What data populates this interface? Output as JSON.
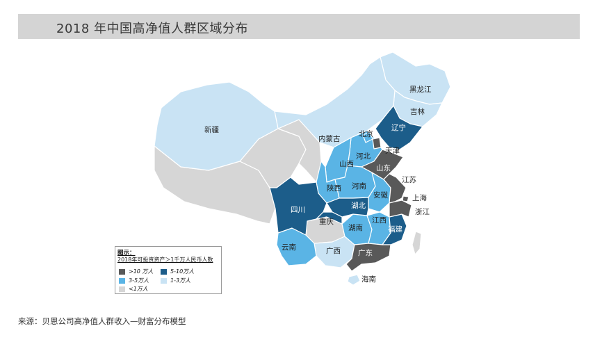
{
  "title": "2018 年中国高净值人群区域分布",
  "source": "来源：贝恩公司高净值人群收入—财富分布模型",
  "colors": {
    "gt10": "#595959",
    "r5_10": "#1c5d8a",
    "r3_5": "#5ab4e5",
    "r1_3": "#c9e3f4",
    "lt1": "#d6d6d6",
    "border": "#ffffff"
  },
  "legend": {
    "title": "图示：",
    "subtitle": "2018年可投资资产＞1千万人民币人数",
    "items": [
      {
        "label": ">10 万人",
        "color": "#595959"
      },
      {
        "label": "5-10万人",
        "color": "#1c5d8a"
      },
      {
        "label": "3-5万人",
        "color": "#5ab4e5"
      },
      {
        "label": "1-3万人",
        "color": "#c9e3f4"
      },
      {
        "label": "<1万人",
        "color": "#d6d6d6"
      }
    ]
  },
  "provinces": {
    "heilongjiang": "黑龙江",
    "jilin": "吉林",
    "liaoning": "辽宁",
    "neimenggu": "内蒙古",
    "xinjiang": "新疆",
    "beijing": "北京",
    "tianjin": "天津",
    "hebei": "河北",
    "shanxi": "山西",
    "shandong": "山东",
    "shaanxi": "陕西",
    "henan": "河南",
    "jiangsu": "江苏",
    "shanghai": "上海",
    "anhui": "安徽",
    "hubei": "湖北",
    "zhejiang": "浙江",
    "sichuan": "四川",
    "chongqing": "重庆",
    "hunan": "湖南",
    "jiangxi": "江西",
    "fujian": "福建",
    "yunnan": "云南",
    "guangxi": "广西",
    "guangdong": "广东",
    "hainan": "海南"
  }
}
